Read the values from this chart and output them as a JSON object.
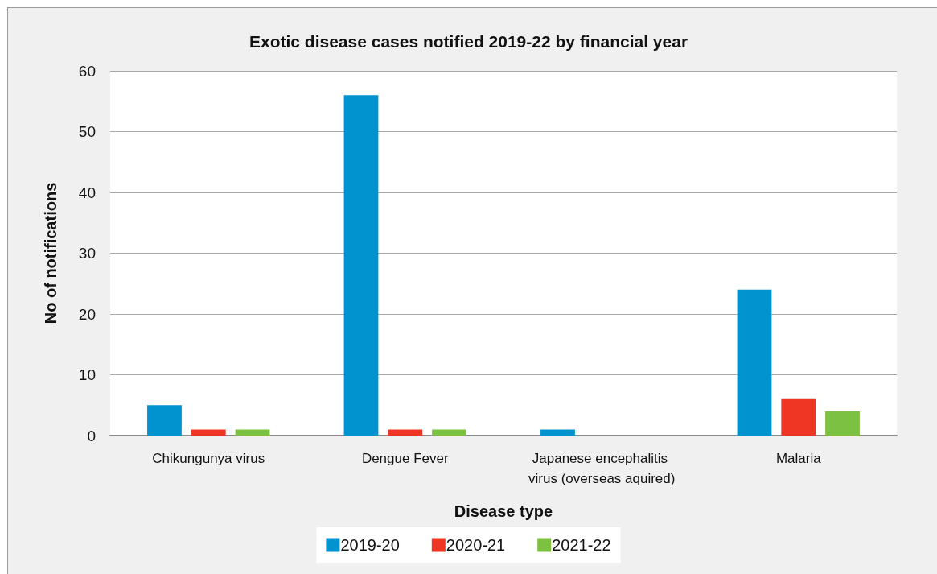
{
  "chart_data": {
    "type": "bar",
    "title": "Exotic disease cases notified 2019-22 by financial year",
    "xlabel": "Disease type",
    "ylabel": "No of notifications",
    "categories": [
      "Chikungunya virus",
      "Dengue Fever",
      "Japanese encephalitis virus (overseas aquired)",
      "Malaria"
    ],
    "series": [
      {
        "name": "2019-20",
        "color": "#0093d0",
        "values": [
          5,
          56,
          1,
          24
        ]
      },
      {
        "name": "2020-21",
        "color": "#ef3524",
        "values": [
          1,
          1,
          0,
          6
        ]
      },
      {
        "name": "2021-22",
        "color": "#7cc142",
        "values": [
          1,
          1,
          0,
          4
        ]
      }
    ],
    "ylim": [
      0,
      60
    ],
    "yticks": [
      0,
      10,
      20,
      30,
      40,
      50,
      60
    ],
    "grid": "y",
    "legend": "bottom"
  }
}
